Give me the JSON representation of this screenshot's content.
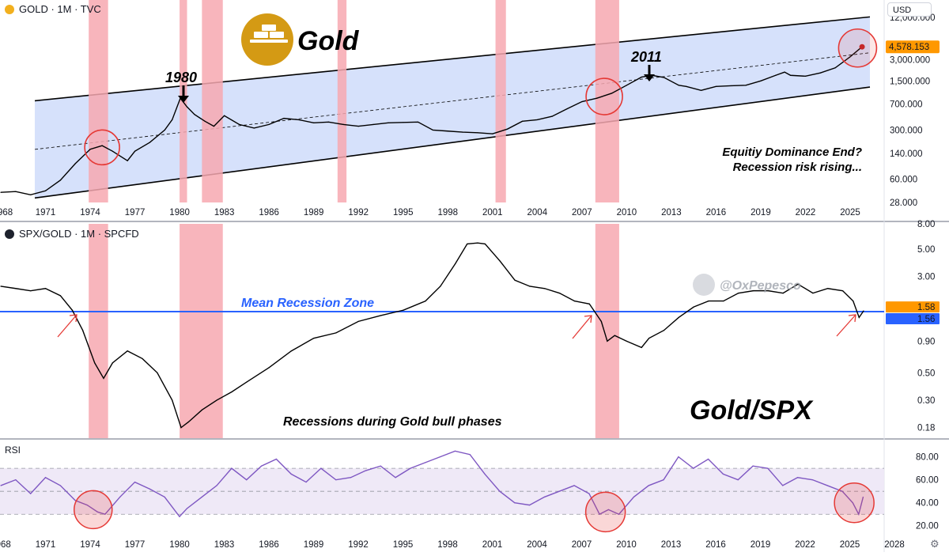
{
  "top_pane": {
    "symbol_title": "GOLD · 1M · TVC",
    "currency": "USD",
    "brand_label": "Gold",
    "annotation_1980": "1980",
    "annotation_2011": "2011",
    "annotation_text_line1": "Equitiy Dominance End?",
    "annotation_text_line2": "Recession risk rising...",
    "y_ticks": [
      "12,000.000",
      "3,000.000",
      "1,500.000",
      "700.000",
      "300.000",
      "140.000",
      "60.000",
      "28.000"
    ],
    "price_label": "4,578.153",
    "x_ticks": [
      "968",
      "1971",
      "1974",
      "1977",
      "1980",
      "1983",
      "1986",
      "1989",
      "1992",
      "1995",
      "1998",
      "2001",
      "2004",
      "2007",
      "2010",
      "2013",
      "2016",
      "2019",
      "2022",
      "2025"
    ]
  },
  "mid_pane": {
    "symbol_title": "SPX/GOLD · 1M · SPCFD",
    "mean_zone_label": "Mean Recession Zone",
    "bottom_caption": "Recessions during Gold bull phases",
    "big_label": "Gold/SPX",
    "watermark": "@OxPepesco",
    "y_ticks": [
      "8.00",
      "5.00",
      "3.00",
      "0.90",
      "0.50",
      "0.30",
      "0.18"
    ],
    "last_value_label": "1.58",
    "mean_value_label": "1.56"
  },
  "rsi_pane": {
    "title": "RSI",
    "y_ticks": [
      "80.00",
      "60.00",
      "40.00",
      "20.00"
    ],
    "x_ticks": [
      "1968",
      "1971",
      "1974",
      "1977",
      "1980",
      "1983",
      "1986",
      "1989",
      "1992",
      "1995",
      "1998",
      "2001",
      "2004",
      "2007",
      "2010",
      "2013",
      "2016",
      "2019",
      "2022",
      "2025",
      "2028"
    ]
  },
  "colors": {
    "recession_band": "#f7a8b0",
    "channel_fill": "#cfdcfa",
    "mean_line": "#2962ff",
    "rsi_line": "#7e57c2",
    "rsi_band": "#ede7f6",
    "circle": "#e53935",
    "price_label_bg": "#ff9800",
    "mean_label_bg": "#2962ff",
    "last_label_bg": "#ff9800"
  },
  "chart_data": [
    {
      "type": "line",
      "title": "GOLD · 1M · TVC",
      "y_scale": "log",
      "ylim": [
        28,
        12000
      ],
      "x_range": [
        1968,
        2026
      ],
      "recession_bands": [
        [
          1973.9,
          1975.2
        ],
        [
          1980.0,
          1980.5
        ],
        [
          1981.5,
          1982.9
        ],
        [
          1990.6,
          1991.2
        ],
        [
          2001.2,
          2001.9
        ],
        [
          2007.9,
          2009.5
        ]
      ],
      "series": [
        {
          "x": [
            1968,
            1969,
            1970,
            1971,
            1972,
            1973,
            1974,
            1974.8,
            1975.5,
            1976.5,
            1977,
            1978,
            1979,
            1979.5,
            1980.05,
            1980.5,
            1981,
            1981.7,
            1982.3,
            1983,
            1984,
            1985,
            1986,
            1987,
            1988,
            1989,
            1990,
            1991,
            1992,
            1993,
            1994,
            1995,
            1996,
            1997,
            1998,
            1999,
            2000,
            2001,
            2002,
            2003,
            2004,
            2005,
            2006,
            2007,
            2008,
            2009,
            2010,
            2011,
            2011.7,
            2012.5,
            2013.5,
            2014,
            2015,
            2016,
            2017,
            2018,
            2019,
            2020,
            2020.6,
            2021,
            2022,
            2023,
            2024,
            2025,
            2025.8
          ],
          "values": [
            39,
            40,
            36,
            41,
            58,
            100,
            160,
            180,
            150,
            110,
            150,
            200,
            300,
            420,
            850,
            640,
            500,
            400,
            340,
            480,
            360,
            320,
            360,
            440,
            420,
            380,
            390,
            360,
            340,
            360,
            380,
            385,
            390,
            300,
            290,
            280,
            275,
            265,
            310,
            400,
            420,
            470,
            600,
            760,
            850,
            1000,
            1300,
            1700,
            1800,
            1680,
            1300,
            1250,
            1100,
            1250,
            1280,
            1300,
            1500,
            1800,
            2000,
            1800,
            1750,
            1950,
            2300,
            3300,
            4578
          ]
        }
      ],
      "channel": {
        "upper": [
          [
            1968,
            700
          ],
          [
            2026,
            12000
          ]
        ],
        "lower": [
          [
            1968,
            28
          ],
          [
            2026,
            1200
          ]
        ],
        "mid": [
          [
            1968,
            140
          ],
          [
            2026,
            3700
          ]
        ]
      },
      "last_value": 4578.153
    },
    {
      "type": "line",
      "title": "SPX/GOLD · 1M · SPCFD",
      "y_scale": "log",
      "ylim": [
        0.15,
        8
      ],
      "x_range": [
        1968,
        2026
      ],
      "mean_line_value": 1.56,
      "recession_bands": [
        [
          1973.9,
          1975.2
        ],
        [
          1980.0,
          1982.9
        ],
        [
          2007.9,
          2009.5
        ]
      ],
      "series": [
        {
          "x": [
            1968,
            1969,
            1970,
            1971,
            1972,
            1972.8,
            1973.5,
            1974.3,
            1974.9,
            1975.5,
            1976.5,
            1977.5,
            1978.5,
            1979.5,
            1980.1,
            1980.6,
            1981.5,
            1982.5,
            1983.5,
            1984.5,
            1986,
            1987.5,
            1989,
            1990.5,
            1992,
            1993.5,
            1995,
            1996.5,
            1997.5,
            1998.5,
            1999.3,
            2000,
            2000.5,
            2001.5,
            2002.5,
            2003.5,
            2004.5,
            2005.5,
            2006.5,
            2007.5,
            2008.3,
            2008.7,
            2009.2,
            2010,
            2011,
            2011.5,
            2012.5,
            2013.5,
            2014.5,
            2015.5,
            2016.5,
            2017.5,
            2018.5,
            2019.5,
            2020.5,
            2021.5,
            2022.5,
            2023.5,
            2024.5,
            2025.2,
            2025.6,
            2025.9
          ],
          "values": [
            2.5,
            2.4,
            2.3,
            2.4,
            2.1,
            1.6,
            1.1,
            0.6,
            0.45,
            0.6,
            0.75,
            0.65,
            0.5,
            0.3,
            0.18,
            0.2,
            0.25,
            0.3,
            0.35,
            0.42,
            0.55,
            0.75,
            0.95,
            1.05,
            1.3,
            1.45,
            1.6,
            1.9,
            2.5,
            3.8,
            5.5,
            5.6,
            5.5,
            4.0,
            2.8,
            2.5,
            2.4,
            2.2,
            1.9,
            1.8,
            1.3,
            0.9,
            1.0,
            0.9,
            0.8,
            0.95,
            1.1,
            1.4,
            1.7,
            1.9,
            1.9,
            2.2,
            2.3,
            2.3,
            2.2,
            2.6,
            2.2,
            2.4,
            2.3,
            1.9,
            1.4,
            1.58
          ]
        }
      ],
      "last_value": 1.58
    },
    {
      "type": "line",
      "title": "RSI",
      "ylim": [
        15,
        88
      ],
      "x_range": [
        1968,
        2028
      ],
      "bands": [
        30,
        50,
        70
      ],
      "series": [
        {
          "x": [
            1968,
            1969,
            1970,
            1971,
            1972,
            1973,
            1973.8,
            1974.5,
            1975,
            1976,
            1977,
            1978,
            1979,
            1980,
            1980.5,
            1981.5,
            1982.5,
            1983.5,
            1984.5,
            1985.5,
            1986.5,
            1987.5,
            1988.5,
            1989.5,
            1990.5,
            1991.5,
            1992.5,
            1993.5,
            1994.5,
            1995.5,
            1996.5,
            1997.5,
            1998.5,
            1999.5,
            2000.5,
            2001.5,
            2002.5,
            2003.5,
            2004.5,
            2005.5,
            2006.5,
            2007.5,
            2008.2,
            2008.8,
            2009.5,
            2010.5,
            2011.5,
            2012.5,
            2013.5,
            2014.5,
            2015.5,
            2016.5,
            2017.5,
            2018.5,
            2019.5,
            2020.5,
            2021.5,
            2022.5,
            2023.5,
            2024.5,
            2025.2,
            2025.6,
            2025.9
          ],
          "values": [
            55,
            60,
            48,
            62,
            55,
            42,
            38,
            32,
            30,
            45,
            58,
            52,
            45,
            28,
            35,
            45,
            55,
            70,
            60,
            72,
            78,
            65,
            58,
            70,
            60,
            62,
            68,
            72,
            62,
            70,
            75,
            80,
            85,
            82,
            65,
            50,
            40,
            38,
            45,
            50,
            55,
            48,
            30,
            34,
            30,
            45,
            55,
            60,
            80,
            70,
            78,
            65,
            60,
            72,
            70,
            55,
            62,
            60,
            55,
            50,
            40,
            30,
            45
          ]
        }
      ]
    }
  ]
}
